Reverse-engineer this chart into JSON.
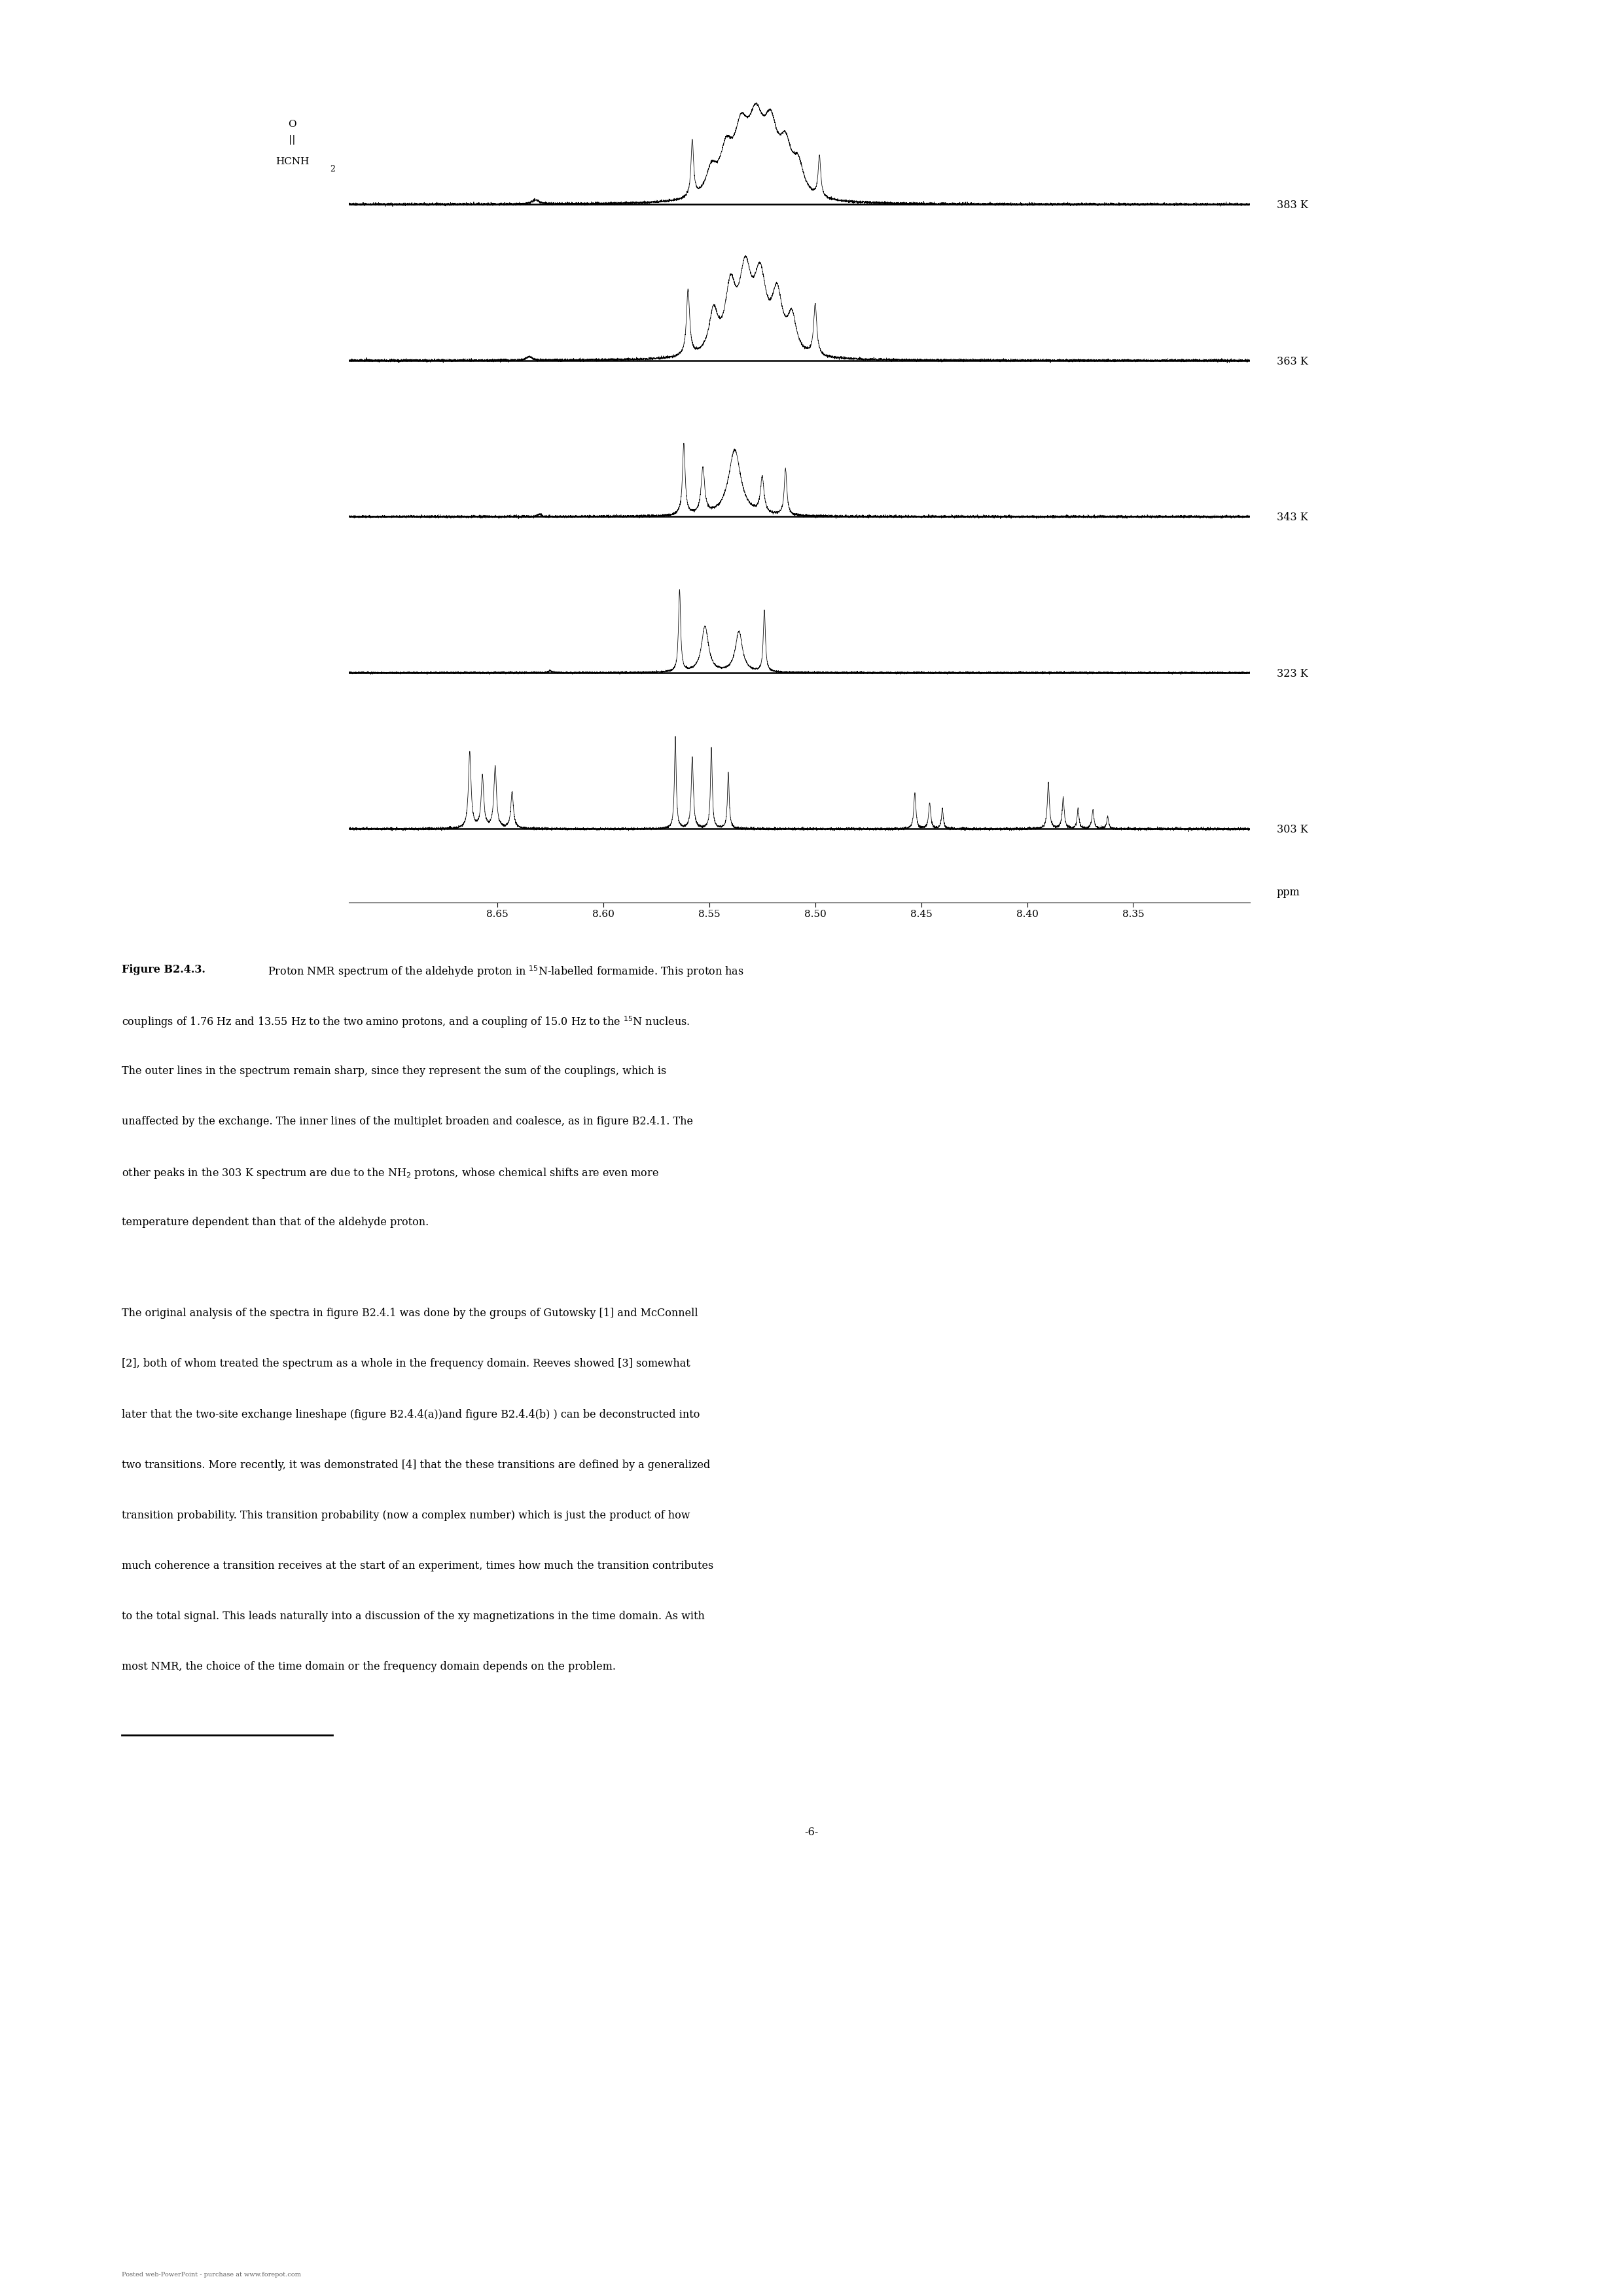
{
  "background_color": "#ffffff",
  "page_width": 24.8,
  "page_height": 35.08,
  "temps": [
    "383 K",
    "363 K",
    "343 K",
    "323 K",
    "303 K"
  ],
  "xaxis_ppm": [
    8.65,
    8.6,
    8.55,
    8.5,
    8.45,
    8.4,
    8.35
  ],
  "xmin": 8.295,
  "xmax": 8.72,
  "caption_bold": "Figure B2.4.3.",
  "caption_rest_line1": " Proton NMR spectrum of the aldehyde proton in $^{15}$N-labelled formamide. This proton has",
  "caption_lines": [
    "couplings of 1.76 Hz and 13.55 Hz to the two amino protons, and a coupling of 15.0 Hz to the $^{15}$N nucleus.",
    "The outer lines in the spectrum remain sharp, since they represent the sum of the couplings, which is",
    "unaffected by the exchange. The inner lines of the multiplet broaden and coalesce, as in figure B2.4.1. The",
    "other peaks in the 303 K spectrum are due to the NH$_2$ protons, whose chemical shifts are even more",
    "temperature dependent than that of the aldehyde proton."
  ],
  "para2_lines": [
    "The original analysis of the spectra in figure B2.4.1 was done by the groups of Gutowsky [1] and McConnell",
    "[2], both of whom treated the spectrum as a whole in the frequency domain. Reeves showed [3] somewhat",
    "later that the two-site exchange lineshape (figure B2.4.4(a))and figure B2.4.4(b) ) can be deconstructed into",
    "two transitions. More recently, it was demonstrated [4] that the these transitions are defined by a generalized",
    "transition probability. This transition probability (now a complex number) which is just the product of how",
    "much coherence a transition receives at the start of an experiment, times how much the transition contributes",
    "to the total signal. This leads naturally into a discussion of the xy magnetizations in the time domain. As with",
    "most NMR, the choice of the time domain or the frequency domain depends on the problem."
  ],
  "page_number": "-6-",
  "footer": "Posted web-PowerPoint - purchase at www.forepot.com",
  "font_size_text": 11.5,
  "font_size_axis": 11.0
}
